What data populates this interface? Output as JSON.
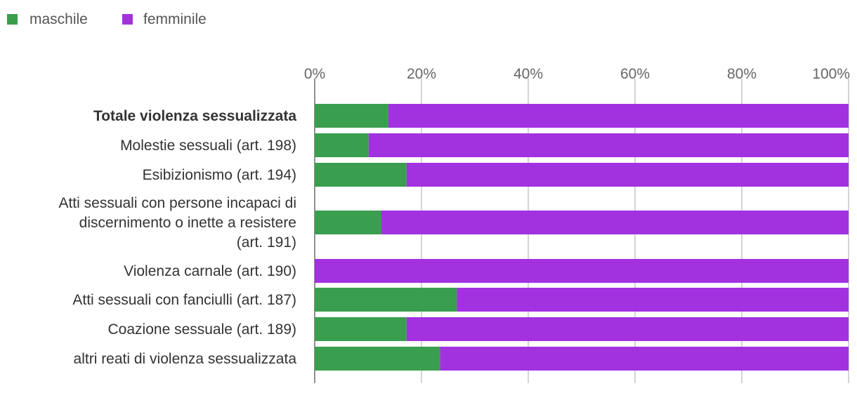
{
  "chart_data": {
    "type": "bar",
    "orientation": "horizontal",
    "stacked": true,
    "title": "",
    "xlabel": "",
    "ylabel": "",
    "xlim": [
      0,
      100
    ],
    "ticks": [
      "0%",
      "20%",
      "40%",
      "60%",
      "80%",
      "100%"
    ],
    "tick_values": [
      0,
      20,
      40,
      60,
      80,
      100
    ],
    "axis_position": "top",
    "grid": true,
    "legend_placement": "top-left",
    "categories": [
      [
        "Totale violenza sessualizzata"
      ],
      [
        "Molestie sessuali (art. 198)"
      ],
      [
        "Esibizionismo (art. 194)"
      ],
      [
        "Atti sessuali con persone incapaci di",
        "discernimento o inette a resistere",
        "(art. 191)"
      ],
      [
        "Violenza carnale (art. 190)"
      ],
      [
        "Atti sessuali con fanciulli (art. 187)"
      ],
      [
        "Coazione sessuale (art. 189)"
      ],
      [
        "altri reati di violenza sessualizzata"
      ]
    ],
    "bold_categories": [
      0
    ],
    "series": [
      {
        "name": "maschile",
        "color": "#3a9e4f",
        "values": [
          13.8,
          10.1,
          17.2,
          12.5,
          0.0,
          26.6,
          17.2,
          23.5
        ]
      },
      {
        "name": "femminile",
        "color": "#a232e0",
        "values": [
          86.2,
          89.9,
          82.8,
          87.5,
          100.0,
          73.4,
          82.8,
          76.5
        ]
      }
    ]
  }
}
